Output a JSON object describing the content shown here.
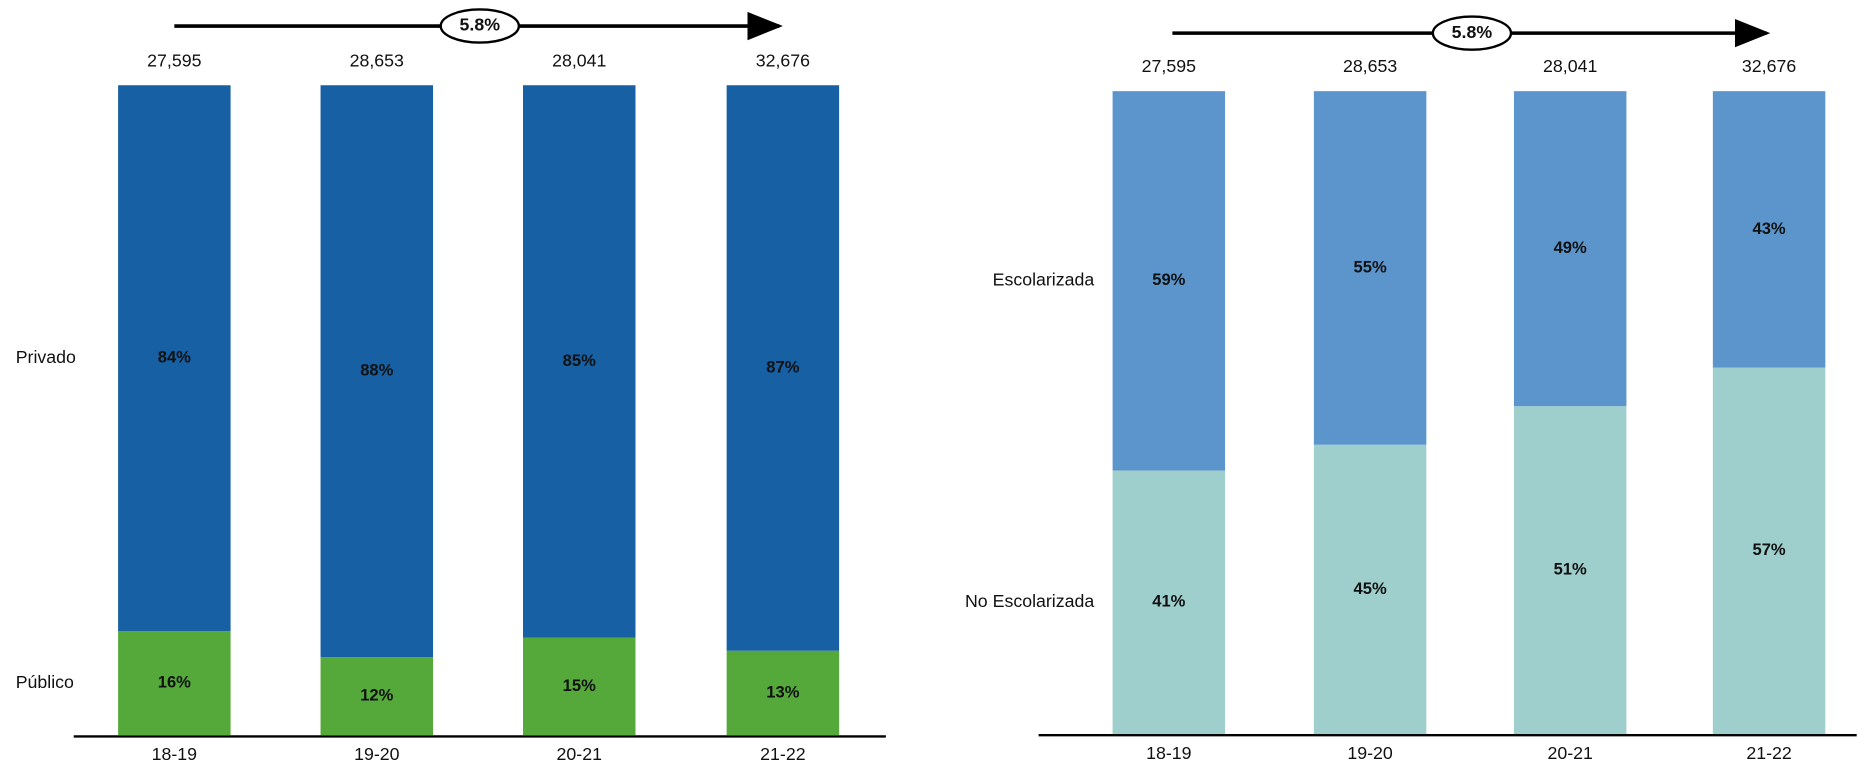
{
  "chart_data": [
    {
      "type": "stacked_bar",
      "annotation": "5.8%",
      "categories": [
        "18-19",
        "19-20",
        "20-21",
        "21-22"
      ],
      "totals": [
        {
          "value": 27595,
          "label": "27,595"
        },
        {
          "value": 28653,
          "label": "28,653"
        },
        {
          "value": 28041,
          "label": "28,041"
        },
        {
          "value": 32676,
          "label": "32,676"
        }
      ],
      "series": [
        {
          "name": "Público",
          "color": "#55a93a",
          "values": [
            16,
            12,
            15,
            13
          ],
          "value_labels": [
            "16%",
            "12%",
            "15%",
            "13%"
          ]
        },
        {
          "name": "Privado",
          "color": "#1660a3",
          "values": [
            84,
            88,
            85,
            87
          ],
          "value_labels": [
            "84%",
            "88%",
            "85%",
            "87%"
          ]
        }
      ],
      "ylim": [
        0,
        100
      ],
      "legend": "left"
    },
    {
      "type": "stacked_bar",
      "annotation": "5.8%",
      "categories": [
        "18-19",
        "19-20",
        "20-21",
        "21-22"
      ],
      "totals": [
        {
          "value": 27595,
          "label": "27,595"
        },
        {
          "value": 28653,
          "label": "28,653"
        },
        {
          "value": 28041,
          "label": "28,041"
        },
        {
          "value": 32676,
          "label": "32,676"
        }
      ],
      "series": [
        {
          "name": "No Escolarizada",
          "color": "#9ecfcc",
          "values": [
            41,
            45,
            51,
            57
          ],
          "value_labels": [
            "41%",
            "45%",
            "51%",
            "57%"
          ]
        },
        {
          "name": "Escolarizada",
          "color": "#5b95cc",
          "values": [
            59,
            55,
            49,
            43
          ],
          "value_labels": [
            "59%",
            "55%",
            "49%",
            "43%"
          ]
        }
      ],
      "ylim": [
        0,
        100
      ],
      "legend": "left"
    }
  ]
}
